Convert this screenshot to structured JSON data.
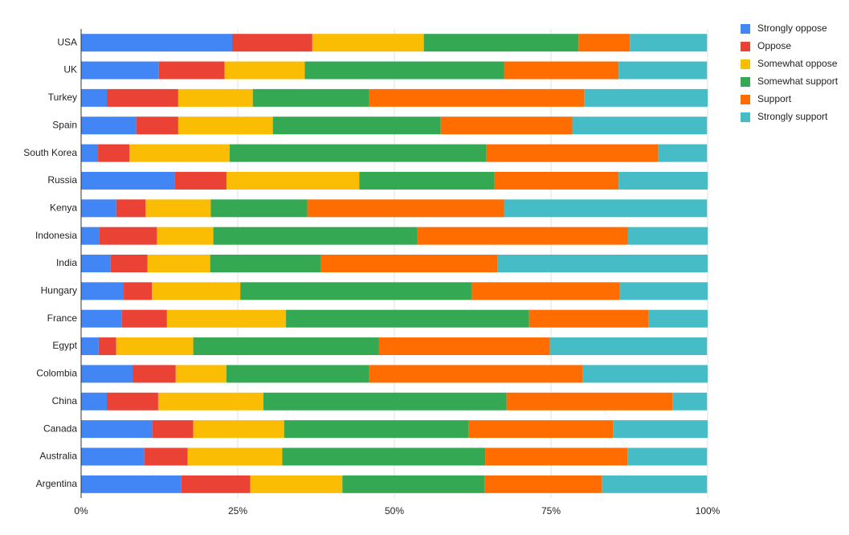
{
  "chart_data": {
    "type": "stacked-bar-horizontal-percent",
    "categories": [
      "USA",
      "UK",
      "Turkey",
      "Spain",
      "South Korea",
      "Russia",
      "Kenya",
      "Indonesia",
      "India",
      "Hungary",
      "France",
      "Egypt",
      "Colombia",
      "China",
      "Canada",
      "Australia",
      "Argentina"
    ],
    "series": [
      {
        "name": "Strongly oppose",
        "color": "#4285f4",
        "values": [
          24.1,
          12.4,
          4.1,
          8.8,
          2.7,
          14.9,
          5.6,
          2.9,
          4.7,
          6.8,
          6.5,
          2.8,
          8.2,
          4.1,
          11.4,
          10.1,
          16.0
        ]
      },
      {
        "name": "Oppose",
        "color": "#ea4335",
        "values": [
          12.8,
          10.5,
          11.4,
          6.7,
          5.0,
          8.3,
          4.7,
          9.2,
          5.9,
          4.5,
          7.2,
          2.8,
          6.9,
          8.2,
          6.5,
          6.9,
          11.0
        ]
      },
      {
        "name": "Somewhat oppose",
        "color": "#fbbc04",
        "values": [
          17.8,
          12.8,
          11.9,
          15.1,
          16.0,
          21.2,
          10.4,
          9.0,
          10.0,
          14.1,
          19.0,
          12.3,
          8.1,
          16.8,
          14.5,
          15.1,
          14.7
        ]
      },
      {
        "name": "Somewhat support",
        "color": "#34a853",
        "values": [
          24.7,
          31.8,
          18.5,
          26.8,
          41.0,
          21.5,
          15.4,
          32.6,
          17.6,
          36.9,
          38.8,
          29.6,
          22.7,
          38.8,
          29.4,
          32.4,
          22.7
        ]
      },
      {
        "name": "Support",
        "color": "#ff6d01",
        "values": [
          8.2,
          18.3,
          34.4,
          21.0,
          27.4,
          19.9,
          31.4,
          33.6,
          28.3,
          23.6,
          19.1,
          27.3,
          34.2,
          26.5,
          23.1,
          22.7,
          18.7
        ]
      },
      {
        "name": "Strongly support",
        "color": "#46bdc6",
        "values": [
          12.3,
          14.1,
          19.7,
          21.5,
          7.8,
          14.2,
          32.4,
          12.7,
          33.5,
          14.1,
          9.4,
          25.1,
          19.9,
          5.5,
          15.1,
          12.7,
          16.8
        ]
      }
    ],
    "xlim": [
      0,
      100
    ],
    "xticks": [
      {
        "value": 0,
        "label": "0%"
      },
      {
        "value": 25,
        "label": "25%"
      },
      {
        "value": 50,
        "label": "50%"
      },
      {
        "value": 75,
        "label": "75%"
      },
      {
        "value": 100,
        "label": "100%"
      }
    ],
    "grid": true,
    "legend": "top-right"
  }
}
